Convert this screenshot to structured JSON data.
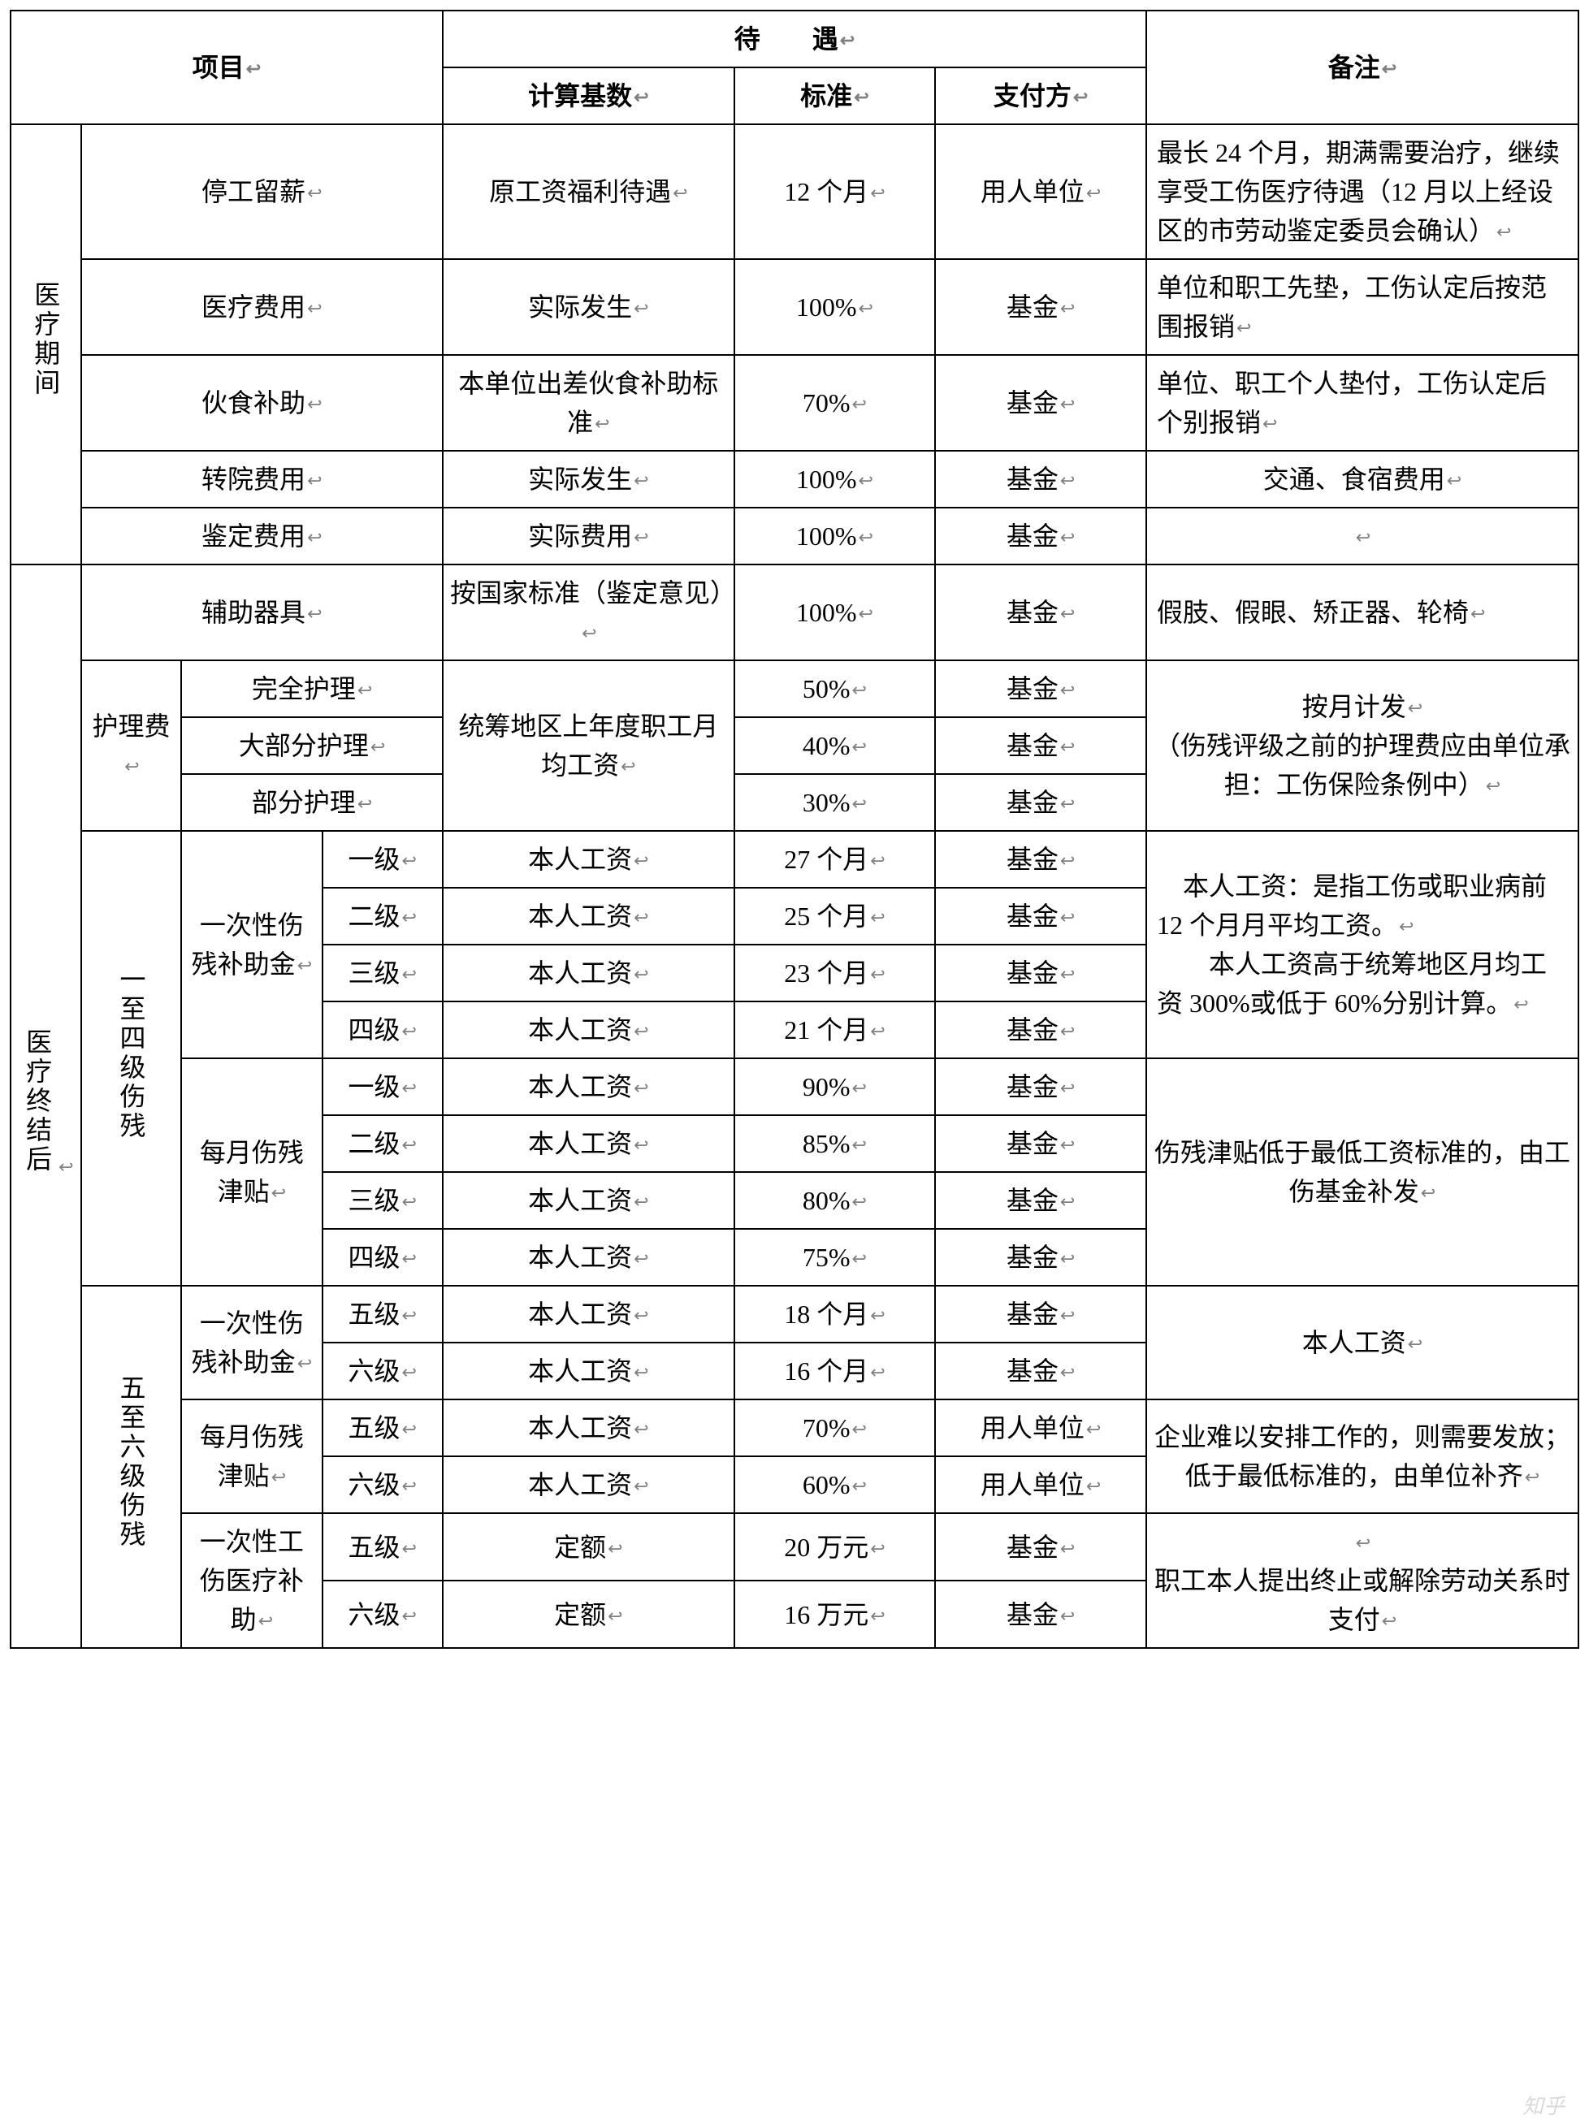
{
  "mark": "↩",
  "headers": {
    "project": "项目",
    "treatment": "待　　遇",
    "base": "计算基数",
    "standard": "标准",
    "payer": "支付方",
    "note": "备注"
  },
  "section1": {
    "label": "医疗期间",
    "r1": {
      "name": "停工留薪",
      "base": "原工资福利待遇",
      "std": "12 个月",
      "payer": "用人单位",
      "note": "最长 24 个月，期满需要治疗，继续享受工伤医疗待遇（12 月以上经设区的市劳动鉴定委员会确认）"
    },
    "r2": {
      "name": "医疗费用",
      "base": "实际发生",
      "std": "100%",
      "payer": "基金",
      "note": "单位和职工先垫，工伤认定后按范围报销"
    },
    "r3": {
      "name": "伙食补助",
      "base": "本单位出差伙食补助标准",
      "std": "70%",
      "payer": "基金",
      "note": "单位、职工个人垫付，工伤认定后个别报销"
    },
    "r4": {
      "name": "转院费用",
      "base": "实际发生",
      "std": "100%",
      "payer": "基金",
      "note": "交通、食宿费用"
    },
    "r5": {
      "name": "鉴定费用",
      "base": "实际费用",
      "std": "100%",
      "payer": "基金",
      "note": ""
    }
  },
  "section2": {
    "label": "医疗终结后",
    "aux": {
      "name": "辅助器具",
      "base": "按国家标准（鉴定意见）",
      "std": "100%",
      "payer": "基金",
      "note": "假肢、假眼、矫正器、轮椅"
    },
    "nursing": {
      "label": "护理费",
      "base": "统筹地区上年度职工月均工资",
      "note": "按月计发↵（伤残评级之前的护理费应由单位承担：工伤保险条例中）",
      "r1": {
        "name": "完全护理",
        "std": "50%",
        "payer": "基金"
      },
      "r2": {
        "name": "大部分护理",
        "std": "40%",
        "payer": "基金"
      },
      "r3": {
        "name": "部分护理",
        "std": "30%",
        "payer": "基金"
      }
    },
    "l14": {
      "label": "一至四级伤残",
      "lump": {
        "label": "一次性伤残补助金",
        "note": "　本人工资：是指工伤或职业病前 12 个月月平均工资。↵　　本人工资高于统筹地区月均工资 300%或低于 60%分别计算。",
        "r1": {
          "lv": "一级",
          "base": "本人工资",
          "std": "27 个月",
          "payer": "基金"
        },
        "r2": {
          "lv": "二级",
          "base": "本人工资",
          "std": "25 个月",
          "payer": "基金"
        },
        "r3": {
          "lv": "三级",
          "base": "本人工资",
          "std": "23 个月",
          "payer": "基金"
        },
        "r4": {
          "lv": "四级",
          "base": "本人工资",
          "std": "21 个月",
          "payer": "基金"
        }
      },
      "monthly": {
        "label": "每月伤残津贴",
        "note": "伤残津贴低于最低工资标准的，由工伤基金补发",
        "r1": {
          "lv": "一级",
          "base": "本人工资",
          "std": "90%",
          "payer": "基金"
        },
        "r2": {
          "lv": "二级",
          "base": "本人工资",
          "std": "85%",
          "payer": "基金"
        },
        "r3": {
          "lv": "三级",
          "base": "本人工资",
          "std": "80%",
          "payer": "基金"
        },
        "r4": {
          "lv": "四级",
          "base": "本人工资",
          "std": "75%",
          "payer": "基金"
        }
      }
    },
    "l56": {
      "label": "五至六级伤残",
      "lump": {
        "label": "一次性伤残补助金",
        "note": "本人工资",
        "r1": {
          "lv": "五级",
          "base": "本人工资",
          "std": "18 个月",
          "payer": "基金"
        },
        "r2": {
          "lv": "六级",
          "base": "本人工资",
          "std": "16 个月",
          "payer": "基金"
        }
      },
      "monthly": {
        "label": "每月伤残津贴",
        "note": "企业难以安排工作的，则需要发放；低于最低标准的，由单位补齐",
        "r1": {
          "lv": "五级",
          "base": "本人工资",
          "std": "70%",
          "payer": "用人单位"
        },
        "r2": {
          "lv": "六级",
          "base": "本人工资",
          "std": "60%",
          "payer": "用人单位"
        }
      },
      "medsub": {
        "label": "一次性工伤医疗补助",
        "note": "↵职工本人提出终止或解除劳动关系时支付",
        "r1": {
          "lv": "五级",
          "base": "定额",
          "std": "20 万元",
          "payer": "基金"
        },
        "r2": {
          "lv": "六级",
          "base": "定额",
          "std": "16 万元",
          "payer": "基金"
        }
      }
    }
  },
  "watermark": "知乎"
}
